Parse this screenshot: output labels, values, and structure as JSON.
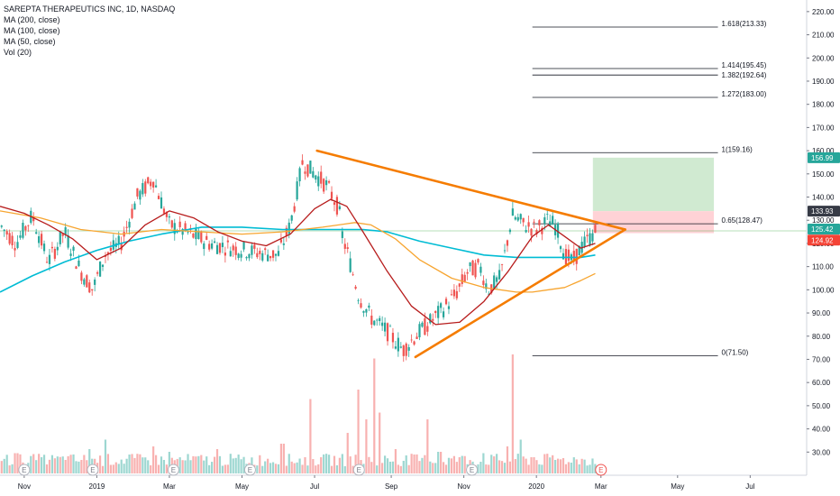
{
  "legend": {
    "title": "SAREPTA THERAPEUTICS INC, 1D, NASDAQ",
    "items": [
      "MA (200, close)",
      "MA (100, close)",
      "MA (50, close)",
      "Vol (20)"
    ]
  },
  "colors": {
    "up": "#26a69a",
    "down": "#ef5350",
    "ma200": "#00bcd4",
    "ma100": "#f7a530",
    "ma50": "#b71c1c",
    "trend": "#f57c00",
    "fib": "#131722",
    "target_zone": "#c8e6c9",
    "stop_zone": "#ffcdd2",
    "badge_green": "#26a69a",
    "badge_gray": "#363a45",
    "badge_red": "#f44336"
  },
  "chart_data": {
    "type": "candlestick",
    "symbol": "SAREPTA THERAPEUTICS INC",
    "interval": "1D",
    "exchange": "NASDAQ",
    "ylim": [
      20,
      225
    ],
    "y_ticks": [
      30,
      40,
      50,
      60,
      70,
      80,
      90,
      100,
      110,
      120,
      130,
      140,
      150,
      160,
      170,
      180,
      190,
      200,
      210,
      220
    ],
    "x_ticks": [
      {
        "label": "Nov",
        "t": 0.03
      },
      {
        "label": "2019",
        "t": 0.12
      },
      {
        "label": "Mar",
        "t": 0.21
      },
      {
        "label": "May",
        "t": 0.3
      },
      {
        "label": "Jul",
        "t": 0.39
      },
      {
        "label": "Sep",
        "t": 0.485
      },
      {
        "label": "Nov",
        "t": 0.575
      },
      {
        "label": "2020",
        "t": 0.665
      },
      {
        "label": "Mar",
        "t": 0.745
      },
      {
        "label": "May",
        "t": 0.84
      },
      {
        "label": "Jul",
        "t": 0.93
      }
    ],
    "price_path": [
      [
        0.0,
        128
      ],
      [
        0.02,
        120
      ],
      [
        0.04,
        132
      ],
      [
        0.06,
        112
      ],
      [
        0.08,
        125
      ],
      [
        0.1,
        108
      ],
      [
        0.115,
        100
      ],
      [
        0.13,
        115
      ],
      [
        0.15,
        120
      ],
      [
        0.17,
        140
      ],
      [
        0.19,
        148
      ],
      [
        0.21,
        128
      ],
      [
        0.23,
        125
      ],
      [
        0.26,
        120
      ],
      [
        0.29,
        118
      ],
      [
        0.32,
        116
      ],
      [
        0.345,
        115
      ],
      [
        0.36,
        128
      ],
      [
        0.375,
        155
      ],
      [
        0.39,
        150
      ],
      [
        0.405,
        145
      ],
      [
        0.42,
        135
      ],
      [
        0.425,
        122
      ],
      [
        0.43,
        117
      ],
      [
        0.445,
        97
      ],
      [
        0.46,
        88
      ],
      [
        0.48,
        82
      ],
      [
        0.5,
        74
      ],
      [
        0.515,
        80
      ],
      [
        0.53,
        85
      ],
      [
        0.55,
        92
      ],
      [
        0.565,
        98
      ],
      [
        0.58,
        108
      ],
      [
        0.595,
        110
      ],
      [
        0.605,
        100
      ],
      [
        0.62,
        105
      ],
      [
        0.635,
        132
      ],
      [
        0.65,
        128
      ],
      [
        0.665,
        126
      ],
      [
        0.68,
        130
      ],
      [
        0.69,
        127
      ],
      [
        0.7,
        115
      ],
      [
        0.71,
        112
      ],
      [
        0.72,
        118
      ],
      [
        0.73,
        122
      ],
      [
        0.738,
        125
      ]
    ],
    "ma50_path": [
      [
        0.0,
        136
      ],
      [
        0.03,
        133
      ],
      [
        0.06,
        128
      ],
      [
        0.09,
        122
      ],
      [
        0.12,
        113
      ],
      [
        0.15,
        118
      ],
      [
        0.18,
        128
      ],
      [
        0.21,
        134
      ],
      [
        0.24,
        131
      ],
      [
        0.27,
        125
      ],
      [
        0.3,
        121
      ],
      [
        0.33,
        119
      ],
      [
        0.36,
        124
      ],
      [
        0.39,
        135
      ],
      [
        0.41,
        139
      ],
      [
        0.43,
        136
      ],
      [
        0.45,
        125
      ],
      [
        0.48,
        108
      ],
      [
        0.51,
        93
      ],
      [
        0.54,
        85
      ],
      [
        0.57,
        86
      ],
      [
        0.6,
        95
      ],
      [
        0.63,
        108
      ],
      [
        0.66,
        123
      ],
      [
        0.68,
        128
      ],
      [
        0.7,
        123
      ],
      [
        0.72,
        118
      ],
      [
        0.738,
        120
      ]
    ],
    "ma100_path": [
      [
        0.0,
        134
      ],
      [
        0.05,
        131
      ],
      [
        0.1,
        126
      ],
      [
        0.15,
        124
      ],
      [
        0.2,
        126
      ],
      [
        0.25,
        125
      ],
      [
        0.3,
        124
      ],
      [
        0.35,
        125
      ],
      [
        0.4,
        127
      ],
      [
        0.44,
        129
      ],
      [
        0.46,
        128
      ],
      [
        0.49,
        122
      ],
      [
        0.52,
        113
      ],
      [
        0.56,
        105
      ],
      [
        0.6,
        101
      ],
      [
        0.64,
        99
      ],
      [
        0.66,
        99
      ],
      [
        0.68,
        100
      ],
      [
        0.7,
        101
      ],
      [
        0.72,
        104
      ],
      [
        0.738,
        107
      ]
    ],
    "ma200_path": [
      [
        0.0,
        99
      ],
      [
        0.04,
        106
      ],
      [
        0.08,
        112
      ],
      [
        0.12,
        117
      ],
      [
        0.16,
        121
      ],
      [
        0.2,
        124
      ],
      [
        0.25,
        127
      ],
      [
        0.3,
        127
      ],
      [
        0.35,
        126
      ],
      [
        0.4,
        126
      ],
      [
        0.45,
        126
      ],
      [
        0.48,
        125
      ],
      [
        0.52,
        121
      ],
      [
        0.56,
        118
      ],
      [
        0.6,
        115
      ],
      [
        0.64,
        114
      ],
      [
        0.68,
        114
      ],
      [
        0.72,
        114
      ],
      [
        0.738,
        115
      ]
    ],
    "volume_spikes": [
      [
        0.02,
        0.15
      ],
      [
        0.05,
        0.12
      ],
      [
        0.08,
        0.1
      ],
      [
        0.11,
        0.18
      ],
      [
        0.13,
        0.25
      ],
      [
        0.16,
        0.14
      ],
      [
        0.19,
        0.2
      ],
      [
        0.21,
        0.16
      ],
      [
        0.24,
        0.12
      ],
      [
        0.27,
        0.18
      ],
      [
        0.3,
        0.1
      ],
      [
        0.33,
        0.09
      ],
      [
        0.35,
        0.22
      ],
      [
        0.385,
        0.55
      ],
      [
        0.4,
        0.12
      ],
      [
        0.43,
        0.3
      ],
      [
        0.445,
        0.62
      ],
      [
        0.455,
        0.4
      ],
      [
        0.465,
        0.85
      ],
      [
        0.47,
        0.45
      ],
      [
        0.49,
        0.18
      ],
      [
        0.51,
        0.14
      ],
      [
        0.53,
        0.4
      ],
      [
        0.545,
        0.16
      ],
      [
        0.57,
        0.12
      ],
      [
        0.6,
        0.15
      ],
      [
        0.63,
        0.2
      ],
      [
        0.635,
        0.88
      ],
      [
        0.645,
        0.25
      ],
      [
        0.66,
        0.12
      ],
      [
        0.69,
        0.1
      ],
      [
        0.71,
        0.08
      ]
    ],
    "trendlines": [
      {
        "name": "upper",
        "from": [
          0.393,
          160
        ],
        "to": [
          0.775,
          126
        ]
      },
      {
        "name": "lower",
        "from": [
          0.515,
          71
        ],
        "to": [
          0.775,
          126
        ]
      }
    ],
    "fib_levels": [
      {
        "label": "1.618(213.33)",
        "value": 213.33
      },
      {
        "label": "1.414(195.45)",
        "value": 195.45
      },
      {
        "label": "1.382(192.64)",
        "value": 192.64
      },
      {
        "label": "1.272(183.00)",
        "value": 183.0
      },
      {
        "label": "1(159.16)",
        "value": 159.16
      },
      {
        "label": "0.65(128.47)",
        "value": 128.47
      },
      {
        "label": "0(71.50)",
        "value": 71.5
      }
    ],
    "position": {
      "target": 156.99,
      "entry": 125.42,
      "stop": 133.93
    },
    "price_labels": [
      {
        "text": "156.99",
        "value": 156.99,
        "color": "green"
      },
      {
        "text": "133.93",
        "value": 133.93,
        "color": "gray"
      },
      {
        "text": "125.42",
        "value": 125.42,
        "color": "green"
      },
      {
        "text": "124.92",
        "value": 124.92,
        "color": "red"
      }
    ],
    "earnings_markers": [
      0.03,
      0.115,
      0.215,
      0.31,
      0.445,
      0.585,
      0.745
    ]
  }
}
